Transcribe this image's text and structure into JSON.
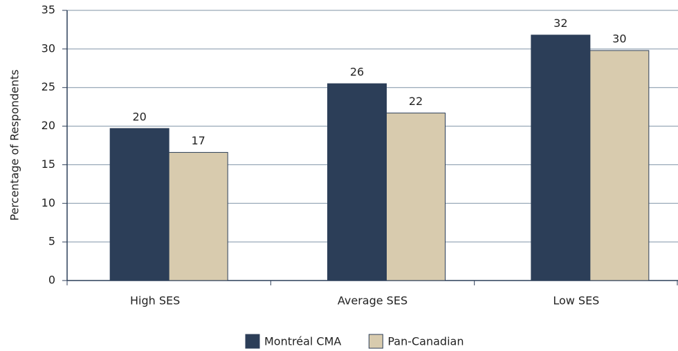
{
  "chart_data": {
    "type": "bar",
    "y_label": "Percentage of Respondents",
    "categories": [
      "High SES",
      "Average SES",
      "Low SES"
    ],
    "series": [
      {
        "name": "Montréal CMA",
        "color": "#2c3e58",
        "values": [
          19.7,
          25.5,
          31.8
        ],
        "value_labels": [
          "20",
          "26",
          "32"
        ]
      },
      {
        "name": "Pan-Canadian",
        "color": "#d8cbae",
        "values": [
          16.6,
          21.7,
          29.8
        ],
        "value_labels": [
          "17",
          "22",
          "30"
        ]
      }
    ],
    "ylim": [
      0,
      35
    ],
    "yticks": [
      0,
      5,
      10,
      15,
      20,
      25,
      30,
      35
    ],
    "grid": true,
    "legend": "bottom"
  }
}
